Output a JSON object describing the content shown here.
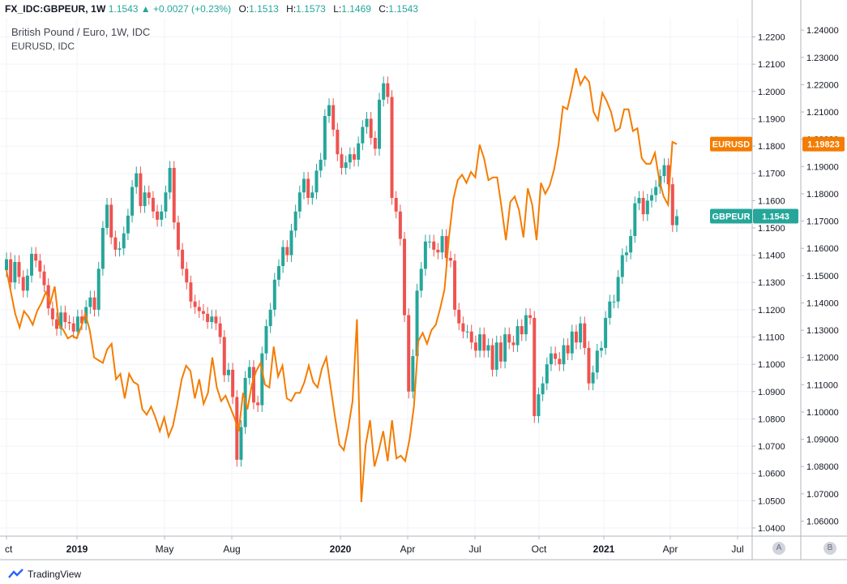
{
  "header": {
    "symbol": "FX_IDC:GBPEUR, 1W",
    "last": "1.1543",
    "arrow": "▲",
    "change": "+0.0027 (+0.23%)",
    "o_label": "O:",
    "o": "1.1513",
    "h_label": "H:",
    "h": "1.1573",
    "l_label": "L:",
    "l": "1.1469",
    "c_label": "C:",
    "c": "1.1543"
  },
  "legend": {
    "main": "British Pound / Euro, 1W, IDC",
    "compare": "EURUSD, IDC"
  },
  "footer": {
    "brand": "TradingView",
    "btn_a": "A",
    "btn_b": "B"
  },
  "colors": {
    "up": "#26a69a",
    "down": "#ef5350",
    "compare": "#f57c00",
    "grid": "#f0f3fa",
    "axis": "#b2b5be"
  },
  "chart_data": {
    "type": "candlestick",
    "title": "British Pound / Euro, 1W, IDC",
    "left_axis": {
      "ylim": [
        1.037,
        1.227
      ],
      "ticks": [
        "1.0400",
        "1.0500",
        "1.0600",
        "1.0700",
        "1.0800",
        "1.0900",
        "1.1000",
        "1.1100",
        "1.1200",
        "1.1300",
        "1.1400",
        "1.1500",
        "1.1600",
        "1.1700",
        "1.1800",
        "1.1900",
        "1.2000",
        "1.2100",
        "1.2200"
      ]
    },
    "right_axis": {
      "ylim": [
        1.0545,
        1.2445
      ],
      "ticks": [
        "1.06000",
        "1.07000",
        "1.08000",
        "1.09000",
        "1.10000",
        "1.11000",
        "1.12000",
        "1.13000",
        "1.14000",
        "1.15000",
        "1.16000",
        "1.17000",
        "1.18000",
        "1.19000",
        "1.20000",
        "1.21000",
        "1.22000",
        "1.23000",
        "1.24000"
      ]
    },
    "x_ticks": [
      "ct",
      "2019",
      "May",
      "Aug",
      "2020",
      "Apr",
      "Jul",
      "Oct",
      "2021",
      "Apr",
      "Jul"
    ],
    "x_tick_bold": [
      false,
      true,
      false,
      false,
      true,
      false,
      false,
      false,
      true,
      false,
      false
    ],
    "series": [
      {
        "name": "GBPEUR",
        "label": "GBPEUR",
        "last": "1.1543",
        "close": [
          1.1385,
          1.13,
          1.1375,
          1.132,
          1.127,
          1.1325,
          1.1405,
          1.138,
          1.134,
          1.129,
          1.1205,
          1.1165,
          1.113,
          1.119,
          1.1155,
          1.115,
          1.112,
          1.1175,
          1.115,
          1.121,
          1.1245,
          1.12,
          1.135,
          1.15,
          1.1585,
          1.1465,
          1.142,
          1.1425,
          1.148,
          1.1545,
          1.165,
          1.17,
          1.158,
          1.163,
          1.161,
          1.156,
          1.153,
          1.156,
          1.163,
          1.172,
          1.152,
          1.142,
          1.135,
          1.13,
          1.123,
          1.121,
          1.1195,
          1.1185,
          1.1155,
          1.1175,
          1.115,
          1.11,
          1.096,
          1.098,
          1.088,
          1.065,
          1.077,
          1.095,
          1.099,
          1.086,
          1.085,
          1.104,
          1.114,
          1.12,
          1.131,
          1.136,
          1.143,
          1.14,
          1.149,
          1.156,
          1.163,
          1.168,
          1.161,
          1.163,
          1.171,
          1.175,
          1.191,
          1.195,
          1.186,
          1.177,
          1.172,
          1.174,
          1.177,
          1.175,
          1.181,
          1.187,
          1.19,
          1.183,
          1.179,
          1.197,
          1.203,
          1.198,
          1.161,
          1.156,
          1.146,
          1.118,
          1.09,
          1.103,
          1.127,
          1.135,
          1.145,
          1.145,
          1.142,
          1.141,
          1.147,
          1.139,
          1.138,
          1.12,
          1.115,
          1.112,
          1.112,
          1.108,
          1.105,
          1.111,
          1.105,
          1.107,
          1.098,
          1.108,
          1.101,
          1.111,
          1.108,
          1.107,
          1.114,
          1.111,
          1.118,
          1.117,
          1.081,
          1.089,
          1.093,
          1.1,
          1.104,
          1.102,
          1.1,
          1.107,
          1.104,
          1.112,
          1.108,
          1.115,
          1.106,
          1.093,
          1.097,
          1.105,
          1.106,
          1.117,
          1.123,
          1.123,
          1.132,
          1.14,
          1.141,
          1.147,
          1.159,
          1.161,
          1.155,
          1.16,
          1.162,
          1.165,
          1.169,
          1.173,
          1.166,
          1.151,
          1.1543
        ]
      },
      {
        "name": "EURUSD",
        "label": "EURUSD",
        "last": "1.19823",
        "values": [
          1.152,
          1.144,
          1.136,
          1.131,
          1.137,
          1.135,
          1.132,
          1.137,
          1.14,
          1.144,
          1.14,
          1.146,
          1.132,
          1.13,
          1.127,
          1.128,
          1.127,
          1.131,
          1.136,
          1.13,
          1.12,
          1.119,
          1.118,
          1.123,
          1.125,
          1.112,
          1.114,
          1.105,
          1.114,
          1.111,
          1.11,
          1.101,
          1.099,
          1.102,
          1.098,
          1.093,
          1.098,
          1.091,
          1.095,
          1.103,
          1.112,
          1.117,
          1.115,
          1.105,
          1.112,
          1.103,
          1.107,
          1.12,
          1.109,
          1.104,
          1.106,
          1.102,
          1.098,
          1.093,
          1.107,
          1.101,
          1.11,
          1.115,
          1.118,
          1.11,
          1.109,
          1.124,
          1.113,
          1.117,
          1.105,
          1.104,
          1.107,
          1.107,
          1.111,
          1.117,
          1.111,
          1.109,
          1.116,
          1.12,
          1.109,
          1.098,
          1.088,
          1.086,
          1.094,
          1.104,
          1.134,
          1.067,
          1.088,
          1.097,
          1.08,
          1.086,
          1.093,
          1.082,
          1.097,
          1.083,
          1.084,
          1.082,
          1.09,
          1.102,
          1.126,
          1.129,
          1.125,
          1.13,
          1.132,
          1.138,
          1.145,
          1.164,
          1.178,
          1.185,
          1.187,
          1.184,
          1.188,
          1.186,
          1.198,
          1.193,
          1.185,
          1.186,
          1.186,
          1.175,
          1.163,
          1.177,
          1.179,
          1.174,
          1.164,
          1.182,
          1.176,
          1.163,
          1.184,
          1.18,
          1.183,
          1.189,
          1.198,
          1.212,
          1.211,
          1.218,
          1.226,
          1.22,
          1.223,
          1.221,
          1.21,
          1.207,
          1.217,
          1.214,
          1.21,
          1.203,
          1.204,
          1.211,
          1.211,
          1.203,
          1.204,
          1.193,
          1.191,
          1.191,
          1.195,
          1.185,
          1.179,
          1.176,
          1.199,
          1.1982
        ]
      }
    ]
  }
}
